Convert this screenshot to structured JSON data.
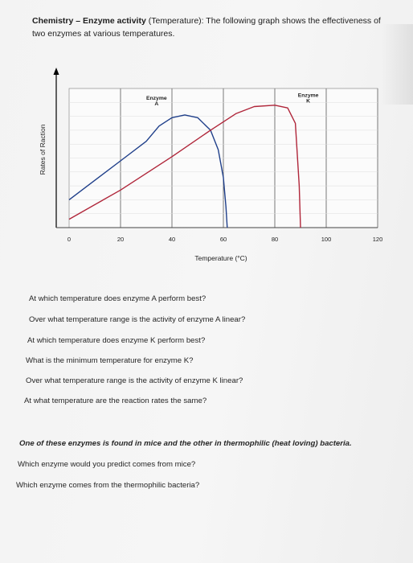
{
  "header": {
    "title_bold": "Chemistry – Enzyme activity",
    "title_rest": " (Temperature): The following graph shows the effectiveness of two enzymes at various temperatures."
  },
  "chart_data": {
    "type": "line",
    "xlabel": "Temperature (°C)",
    "ylabel": "Rates of Raction",
    "x_ticks": [
      0,
      20,
      40,
      60,
      80,
      100,
      120
    ],
    "xlim": [
      0,
      120
    ],
    "ylim": [
      0,
      10
    ],
    "grid": true,
    "series": [
      {
        "name": "Enzyme A",
        "color": "#1f3f8a",
        "points": [
          [
            0,
            2.0
          ],
          [
            10,
            3.4
          ],
          [
            20,
            4.8
          ],
          [
            30,
            6.2
          ],
          [
            35,
            7.3
          ],
          [
            40,
            7.9
          ],
          [
            45,
            8.1
          ],
          [
            50,
            7.9
          ],
          [
            55,
            7.0
          ],
          [
            58,
            5.6
          ],
          [
            60,
            3.6
          ],
          [
            61,
            1.5
          ],
          [
            61.5,
            0
          ]
        ]
      },
      {
        "name": "Enzyme K",
        "color": "#b0263a",
        "points": [
          [
            0,
            0.6
          ],
          [
            20,
            2.7
          ],
          [
            40,
            5.1
          ],
          [
            55,
            7.0
          ],
          [
            65,
            8.2
          ],
          [
            72,
            8.7
          ],
          [
            80,
            8.8
          ],
          [
            85,
            8.6
          ],
          [
            88,
            7.5
          ],
          [
            89.5,
            3.0
          ],
          [
            90,
            0
          ]
        ]
      }
    ],
    "annotations": [
      {
        "text_line1": "Enzyme",
        "text_line2": "A"
      },
      {
        "text_line1": "Enzyme",
        "text_line2": "K"
      }
    ]
  },
  "questions_part1": [
    "At which temperature does enzyme A perform best?",
    "Over what temperature range is the activity of enzyme A linear?",
    "At which temperature does enzyme K perform best?",
    "What is the minimum temperature for enzyme K?",
    "Over what temperature range is the activity of enzyme K linear?",
    "At what temperature are the reaction rates the same?"
  ],
  "intro2": "One of these enzymes is found in mice and the other in thermophilic (heat loving) bacteria.",
  "questions_part2": [
    "Which enzyme would you predict comes from mice?",
    "Which enzyme comes from the thermophilic bacteria?"
  ]
}
